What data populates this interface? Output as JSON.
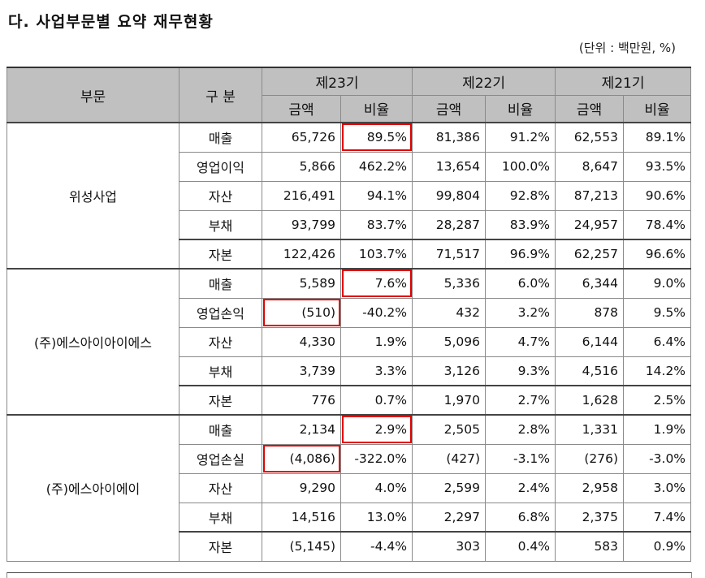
{
  "title": "다. 사업부문별 요약 재무현황",
  "unit": "(단위 : 백만원, %)",
  "header": {
    "segment": "부문",
    "item": "구 분",
    "periods": [
      "제23기",
      "제22기",
      "제21기"
    ],
    "amount": "금액",
    "ratio": "비율"
  },
  "segments": [
    {
      "name": "위성사업",
      "rows": [
        {
          "item": "매출",
          "v": [
            "65,726",
            "89.5%",
            "81,386",
            "91.2%",
            "62,553",
            "89.1%"
          ]
        },
        {
          "item": "영업이익",
          "v": [
            "5,866",
            "462.2%",
            "13,654",
            "100.0%",
            "8,647",
            "93.5%"
          ]
        },
        {
          "item": "자산",
          "v": [
            "216,491",
            "94.1%",
            "99,804",
            "92.8%",
            "87,213",
            "90.6%"
          ]
        },
        {
          "item": "부채",
          "v": [
            "93,799",
            "83.7%",
            "28,287",
            "83.9%",
            "24,957",
            "78.4%"
          ]
        },
        {
          "item": "자본",
          "v": [
            "122,426",
            "103.7%",
            "71,517",
            "96.9%",
            "62,257",
            "96.6%"
          ]
        }
      ]
    },
    {
      "name": "(주)에스아이아이에스",
      "rows": [
        {
          "item": "매출",
          "v": [
            "5,589",
            "7.6%",
            "5,336",
            "6.0%",
            "6,344",
            "9.0%"
          ]
        },
        {
          "item": "영업손익",
          "v": [
            "(510)",
            "-40.2%",
            "432",
            "3.2%",
            "878",
            "9.5%"
          ]
        },
        {
          "item": "자산",
          "v": [
            "4,330",
            "1.9%",
            "5,096",
            "4.7%",
            "6,144",
            "6.4%"
          ]
        },
        {
          "item": "부채",
          "v": [
            "3,739",
            "3.3%",
            "3,126",
            "9.3%",
            "4,516",
            "14.2%"
          ]
        },
        {
          "item": "자본",
          "v": [
            "776",
            "0.7%",
            "1,970",
            "2.7%",
            "1,628",
            "2.5%"
          ]
        }
      ]
    },
    {
      "name": "(주)에스아이에이",
      "rows": [
        {
          "item": "매출",
          "v": [
            "2,134",
            "2.9%",
            "2,505",
            "2.8%",
            "1,331",
            "1.9%"
          ]
        },
        {
          "item": "영업손실",
          "v": [
            "(4,086)",
            "-322.0%",
            "(427)",
            "-3.1%",
            "(276)",
            "-3.0%"
          ]
        },
        {
          "item": "자산",
          "v": [
            "9,290",
            "4.0%",
            "2,599",
            "2.4%",
            "2,958",
            "3.0%"
          ]
        },
        {
          "item": "부채",
          "v": [
            "14,516",
            "13.0%",
            "2,297",
            "6.8%",
            "2,375",
            "7.4%"
          ]
        },
        {
          "item": "자본",
          "v": [
            "(5,145)",
            "-4.4%",
            "303",
            "0.4%",
            "583",
            "0.9%"
          ]
        }
      ]
    }
  ],
  "highlight_color": "#e00000"
}
